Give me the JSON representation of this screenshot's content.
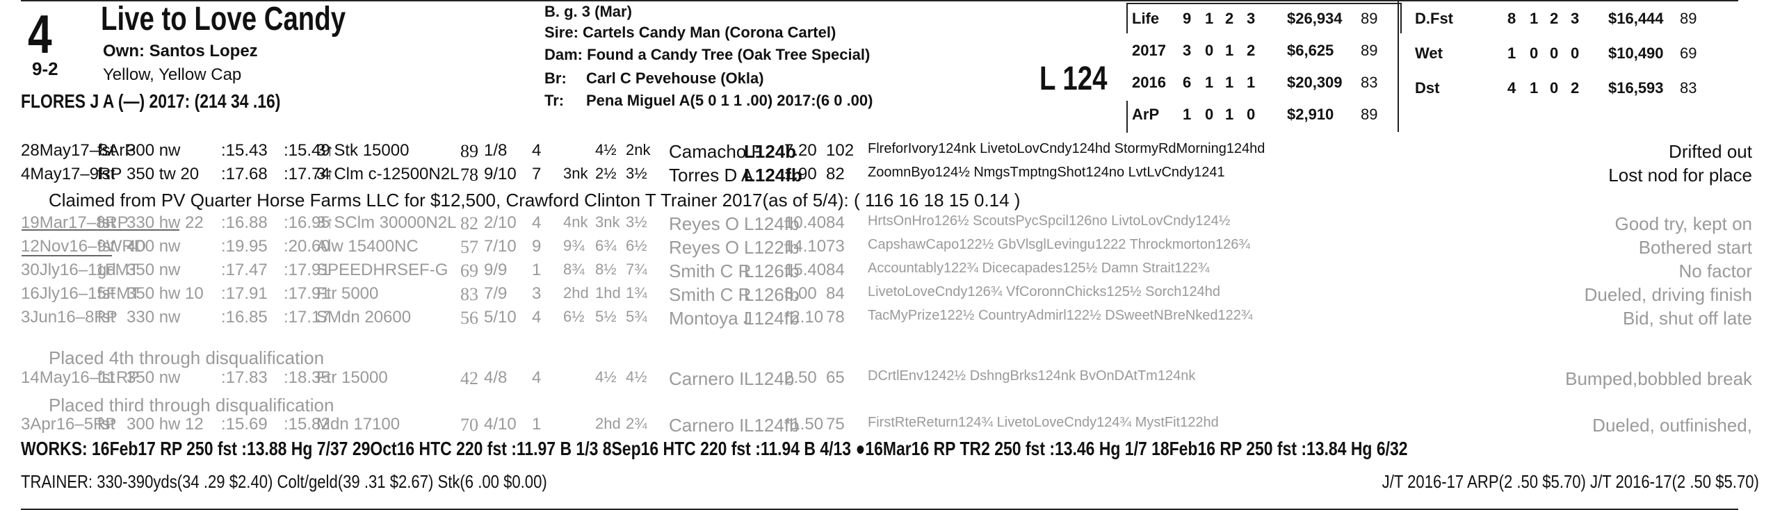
{
  "header": {
    "post": "4",
    "odds": "9-2",
    "horse_name": "Live to Love Candy",
    "owner": "Own: Santos Lopez",
    "silks": "Yellow, Yellow Cap",
    "jockey": "FLORES J A (—) 2017: (214 34 .16)",
    "sex_age": "B. g. 3 (Mar)",
    "sire": "Sire: Cartels Candy Man (Corona Cartel)",
    "dam": "Dam:",
    "dam_value": "Found a Candy Tree (Oak Tree Special)",
    "breeder_label": "Br:",
    "breeder": "Carl C Pevehouse (Okla)",
    "trainer_label": "Tr:",
    "trainer": "Pena Miguel A(5 0 1 1 .00) 2017:(6 0 .00)",
    "lasix_weight": "L 124"
  },
  "record_left": [
    {
      "label": "Life",
      "st": "9",
      "w": "1",
      "p": "2",
      "s": "3",
      "earn": "$26,934",
      "spd": "89"
    },
    {
      "label": "2017",
      "st": "3",
      "w": "0",
      "p": "1",
      "s": "2",
      "earn": "$6,625",
      "spd": "89"
    },
    {
      "label": "2016",
      "st": "6",
      "w": "1",
      "p": "1",
      "s": "1",
      "earn": "$20,309",
      "spd": "83"
    },
    {
      "label": "ArP",
      "st": "1",
      "w": "0",
      "p": "1",
      "s": "0",
      "earn": "$2,910",
      "spd": "89"
    }
  ],
  "record_right": [
    {
      "label": "D.Fst",
      "st": "8",
      "w": "1",
      "p": "2",
      "s": "3",
      "earn": "$16,444",
      "spd": "89"
    },
    {
      "label": "Wet",
      "st": "1",
      "w": "0",
      "p": "0",
      "s": "0",
      "earn": "$10,490",
      "spd": "69"
    },
    {
      "label": "Dst",
      "st": "4",
      "w": "1",
      "p": "0",
      "s": "2",
      "earn": "$16,593",
      "spd": "83"
    }
  ],
  "past_performances": [
    {
      "date": "28May17–8ArP",
      "cond": "fst",
      "dist": "300 nw",
      "f1": ":15.43",
      "f2": ":15.49",
      "race": "3↑Stk 15000",
      "spd": "89",
      "pp": "1/8",
      "st": "4",
      "c1": "",
      "c2": "4½",
      "fin": "2nk",
      "jky": "Camacho F",
      "wt": "L124b",
      "odds": "7.20",
      "par": "102",
      "comp": "FlreforIvory124nk LivetoLovCndy124hd StormyRdMorning124hd",
      "comment": "Drifted out",
      "dim": false
    },
    {
      "date": "4May17–9RP",
      "cond": "fst",
      "dist": "350 tw 20",
      "f1": ":17.68",
      "f2": ":17.74",
      "race": "3↑Clm c-12500N2L",
      "spd": "78",
      "pp": "9/10",
      "st": "7",
      "c1": "3nk",
      "c2": "2½",
      "fin": "3½",
      "jky": "Torres D A",
      "wt": "L124fb",
      "odds": "1.90",
      "par": "82",
      "comp": "ZoomnByo124½ NmgsTmptngShot124no LvtLvCndy1241",
      "comment": "Lost nod for place",
      "dim": false
    },
    {
      "date": "19Mar17–8RP",
      "cond": "fst",
      "dist": "330 hw 22",
      "f1": ":16.88",
      "f2": ":16.95",
      "race": "3↑SClm 30000N2L",
      "spd": "82",
      "pp": "2/10",
      "st": "4",
      "c1": "4nk",
      "c2": "3nk",
      "fin": "3½",
      "jky": "Reyes O",
      "wt": "L124fb",
      "odds": "10.40",
      "par": "84",
      "comp": "HrtsOnHro126½ ScoutsPycSpcil126no LivtoLovCndy124½",
      "comment": "Good try, kept on",
      "dim": true
    },
    {
      "date": "12Nov16–9WRD",
      "cond": "fst",
      "dist": "400 nw",
      "f1": ":19.95",
      "f2": ":20.60",
      "race": "Alw 15400NC",
      "spd": "57",
      "pp": "7/10",
      "st": "9",
      "c1": "9¾",
      "c2": "6¾",
      "fin": "6½",
      "jky": "Reyes O",
      "wt": "L122fb",
      "odds": "14.10",
      "par": "73",
      "comp": "CapshawCapo122½ GbVlsglLevingu1222 Throckmorton126¾",
      "comment": "Bothered start",
      "dim": true
    },
    {
      "date": "30Jly16–11FMT",
      "cond": "gd",
      "dist": "350 nw",
      "f1": ":17.47",
      "f2": ":17.91",
      "race": "SPEEDHRSEF-G",
      "spd": "69",
      "pp": "9/9",
      "st": "1",
      "c1": "8¾",
      "c2": "8½",
      "fin": "7¾",
      "jky": "Smith C R",
      "wt": "L126fb",
      "odds": "15.40",
      "par": "84",
      "comp": "Accountably122¾ Dicecapades125½ Damn Strait122¾",
      "comment": "No factor",
      "dim": true
    },
    {
      "date": "16Jly16–15FMT",
      "cond": "fst",
      "dist": "350 hw 10",
      "f1": ":17.91",
      "f2": ":17.91",
      "race": "Ftr 5000",
      "spd": "83",
      "pp": "7/9",
      "st": "3",
      "c1": "2hd",
      "c2": "1hd",
      "fin": "1¾",
      "jky": "Smith C R",
      "wt": "L126fb",
      "odds": "3.00",
      "par": "84",
      "comp": "LivetoLoveCndy126¾ VfCoronnChicks125½ Sorch124hd",
      "comment": "Dueled, driving finish",
      "dim": true
    },
    {
      "date": "3Jun16–8RP",
      "cond": "fst",
      "dist": "330 nw",
      "f1": ":16.85",
      "f2": ":17.17",
      "race": "SMdn 20600",
      "spd": "56",
      "pp": "5/10",
      "st": "4",
      "c1": "6½",
      "c2": "5½",
      "fin": "5¾",
      "jky": "Montoya J",
      "wt": "L124fb",
      "odds": "*2.10",
      "par": "78",
      "comp": "TacMyPrize122½ CountryAdmirl122½ DSweetNBreNked122¾",
      "comment": "Bid, shut off late",
      "dim": true
    },
    {
      "date": "14May16–11RP",
      "cond": "fst",
      "dist": "350 nw",
      "f1": ":17.83",
      "f2": ":18.35",
      "race": "Ftr 15000",
      "spd": "42",
      "pp": "4/8",
      "st": "4",
      "c1": "",
      "c2": "4½",
      "fin": "4½",
      "jky": "Carnero I",
      "wt": "L124b",
      "odds": "2.50",
      "par": "65",
      "comp": "DCrtlEnv1242½ DshngBrks124nk BvOnDAtTm124nk",
      "comment": "Bumped,bobbled break",
      "dim": true
    },
    {
      "date": "3Apr16–5RP",
      "cond": "fst",
      "dist": "300 hw 12",
      "f1": ":15.69",
      "f2": ":15.82",
      "race": "Mdn 17100",
      "spd": "70",
      "pp": "4/10",
      "st": "1",
      "c1": "",
      "c2": "2hd",
      "fin": "2¾",
      "jky": "Carnero I",
      "wt": "L124fb",
      "odds": "*1.50",
      "par": "75",
      "comp": "FirstRteReturn124¾ LivetoLoveCndy124¾ MystFit122hd",
      "comment": "Dueled, outfinished,",
      "dim": true
    }
  ],
  "notes": {
    "claimed": "Claimed from PV Quarter Horse Farms LLC  for $12,500, Crawford Clinton T Trainer 2017(as of 5/4): ( 116  16  18  15  0.14 )",
    "dq1": "Placed 4th through disqualification",
    "dq2": "Placed third through disqualification"
  },
  "works": "WORKS:   16Feb17 RP  250 fst  :13.88 Hg 7/37   29Oct16 HTC 220 fst  :11.97 B 1/3   8Sep16 HTC 220 fst  :11.94 B 4/13   ●16Mar16 RP  TR2 250 fst  :13.46 Hg 1/7   18Feb16 RP  250 fst  :13.84 Hg 6/32",
  "trainer_stats": "TRAINER: 330-390yds(34 .29 $2.40) Colt/geld(39 .31 $2.67) Stk(6 .00 $0.00)",
  "jt_stats": "J/T 2016-17 ARP(2 .50 $5.70)  J/T 2016-17(2 .50 $5.70)"
}
